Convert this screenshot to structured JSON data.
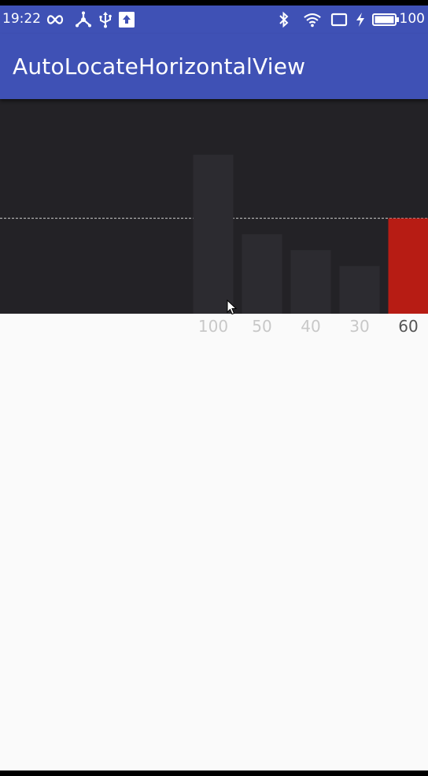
{
  "status_bar": {
    "time": "19:22",
    "battery_level": "100",
    "icons": [
      "infinity-icon",
      "network-icon",
      "usb-icon",
      "upload-icon",
      "bluetooth-icon",
      "wifi-icon",
      "screen-cast-icon",
      "charging-icon",
      "battery-icon"
    ]
  },
  "app_bar": {
    "title": "AutoLocateHorizontalView",
    "color": "#3f51b5"
  },
  "chart_data": {
    "type": "bar",
    "categories": [
      "100",
      "50",
      "40",
      "30",
      "60"
    ],
    "values": [
      100,
      50,
      40,
      30,
      60
    ],
    "selected_index": 4,
    "selected_label": "60",
    "ylim": [
      0,
      135
    ],
    "title": "",
    "xlabel": "",
    "ylabel": "",
    "grid": false,
    "colors": {
      "background": "#232226",
      "bar": "#2c2b30",
      "selected_bar": "#b71c14",
      "reference_line": "#cfcfcf"
    }
  }
}
